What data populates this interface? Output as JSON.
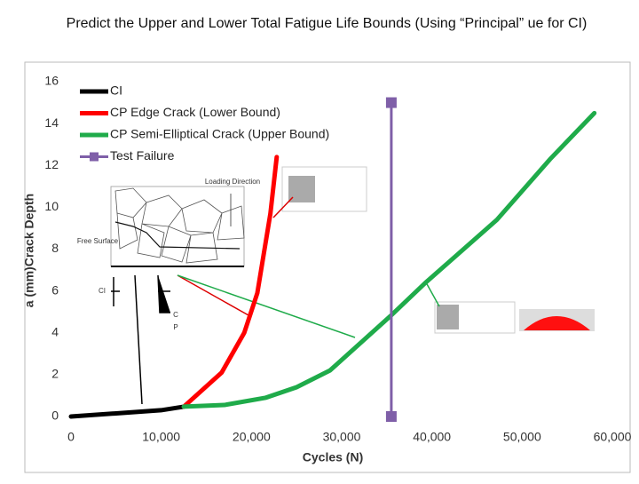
{
  "chart_data": {
    "type": "line",
    "title": "Predict the Upper and Lower Total Fatigue Life Bounds (Using “Principal” ue for CI)",
    "x_label": "Cycles (N)",
    "y_label": "a (mm)Crack Depth",
    "xlim": [
      0,
      60000
    ],
    "xticks": [
      0,
      {
        "value": 10000,
        "label": "10,000"
      },
      {
        "value": 20000,
        "label": "20,000"
      },
      {
        "value": 30000,
        "label": "30,000"
      },
      {
        "value": 40000,
        "label": "40,000"
      },
      {
        "value": 50000,
        "label": "50,000"
      },
      {
        "value": 60000,
        "label": "60,000"
      }
    ],
    "ylim": [
      0,
      16
    ],
    "yticks": [
      0,
      2,
      4,
      6,
      8,
      10,
      12,
      14,
      16
    ],
    "grid": false,
    "legend": "upper-left",
    "series": [
      {
        "name": "CI",
        "color": "#000000",
        "x": [
          0,
          5000,
          10000,
          12500
        ],
        "values": [
          0,
          0.15,
          0.3,
          0.47
        ]
      },
      {
        "name": "CP Edge Crack (Lower Bound)",
        "color": "#ff0000",
        "x": [
          12500,
          16700,
          19200,
          20650,
          22100,
          22800
        ],
        "values": [
          0.47,
          2.1,
          4.0,
          5.9,
          9.7,
          12.4
        ]
      },
      {
        "name": "CP Semi-Elliptical Crack (Upper Bound)",
        "color": "#1fab4a",
        "x": [
          12500,
          17000,
          21600,
          25000,
          28700,
          35400,
          39300,
          47200,
          53100,
          58000
        ],
        "values": [
          0.47,
          0.55,
          0.9,
          1.4,
          2.2,
          4.8,
          6.4,
          9.4,
          12.3,
          14.5
        ]
      },
      {
        "name": "Test Failure",
        "color": "#7f5fa8",
        "marker": "square",
        "x": [
          35500,
          35500
        ],
        "values": [
          15,
          0
        ]
      }
    ],
    "annotations": [
      "Loading Direction",
      "Free Surface",
      "CI",
      "C",
      "P"
    ]
  }
}
